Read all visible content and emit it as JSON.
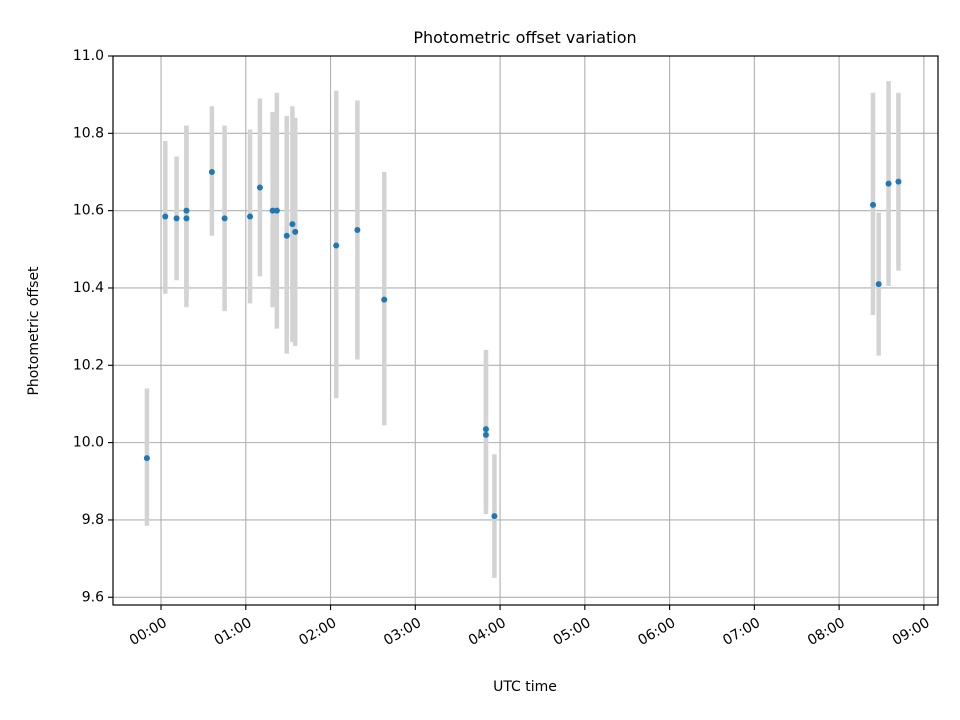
{
  "chart_data": {
    "type": "scatter",
    "title": "Photometric offset variation",
    "xlabel": "UTC time",
    "ylabel": "Photometric offset",
    "xlim": [
      "23:26",
      "09:10"
    ],
    "ylim": [
      9.58,
      11.0
    ],
    "grid": true,
    "x_ticks": [
      "00:00",
      "01:00",
      "02:00",
      "03:00",
      "04:00",
      "05:00",
      "06:00",
      "07:00",
      "08:00",
      "09:00"
    ],
    "y_ticks": [
      9.6,
      9.8,
      10.0,
      10.2,
      10.4,
      10.6,
      10.8,
      11.0
    ],
    "y_tick_labels": [
      "9.6",
      "9.8",
      "10.0",
      "10.2",
      "10.4",
      "10.6",
      "10.8",
      "11.0"
    ],
    "colors": {
      "marker": "#1f77b4",
      "errorbar": "#d3d3d3",
      "grid": "#b0b0b0"
    },
    "points": [
      {
        "x": "23:50",
        "y": 9.96,
        "yerr": [
          9.785,
          10.14
        ]
      },
      {
        "x": "00:03",
        "y": 10.585,
        "yerr": [
          10.385,
          10.78
        ]
      },
      {
        "x": "00:11",
        "y": 10.58,
        "yerr": [
          10.42,
          10.74
        ]
      },
      {
        "x": "00:18",
        "y": 10.58,
        "yerr": [
          10.35,
          10.82
        ]
      },
      {
        "x": "00:18",
        "y": 10.6,
        "yerr": [
          10.37,
          10.82
        ]
      },
      {
        "x": "00:36",
        "y": 10.7,
        "yerr": [
          10.535,
          10.87
        ]
      },
      {
        "x": "00:45",
        "y": 10.58,
        "yerr": [
          10.34,
          10.82
        ]
      },
      {
        "x": "01:03",
        "y": 10.585,
        "yerr": [
          10.36,
          10.81
        ]
      },
      {
        "x": "01:10",
        "y": 10.66,
        "yerr": [
          10.43,
          10.89
        ]
      },
      {
        "x": "01:19",
        "y": 10.6,
        "yerr": [
          10.35,
          10.855
        ]
      },
      {
        "x": "01:22",
        "y": 10.6,
        "yerr": [
          10.295,
          10.905
        ]
      },
      {
        "x": "01:29",
        "y": 10.535,
        "yerr": [
          10.23,
          10.845
        ]
      },
      {
        "x": "01:33",
        "y": 10.565,
        "yerr": [
          10.26,
          10.87
        ]
      },
      {
        "x": "01:35",
        "y": 10.545,
        "yerr": [
          10.25,
          10.84
        ]
      },
      {
        "x": "02:04",
        "y": 10.51,
        "yerr": [
          10.115,
          10.91
        ]
      },
      {
        "x": "02:19",
        "y": 10.55,
        "yerr": [
          10.215,
          10.885
        ]
      },
      {
        "x": "02:38",
        "y": 10.37,
        "yerr": [
          10.045,
          10.7
        ]
      },
      {
        "x": "03:50",
        "y": 10.035,
        "yerr": [
          9.83,
          10.24
        ]
      },
      {
        "x": "03:50",
        "y": 10.02,
        "yerr": [
          9.815,
          10.22
        ]
      },
      {
        "x": "03:56",
        "y": 9.81,
        "yerr": [
          9.65,
          9.97
        ]
      },
      {
        "x": "08:24",
        "y": 10.615,
        "yerr": [
          10.33,
          10.905
        ]
      },
      {
        "x": "08:28",
        "y": 10.41,
        "yerr": [
          10.225,
          10.595
        ]
      },
      {
        "x": "08:35",
        "y": 10.67,
        "yerr": [
          10.405,
          10.935
        ]
      },
      {
        "x": "08:42",
        "y": 10.675,
        "yerr": [
          10.445,
          10.905
        ]
      }
    ]
  }
}
